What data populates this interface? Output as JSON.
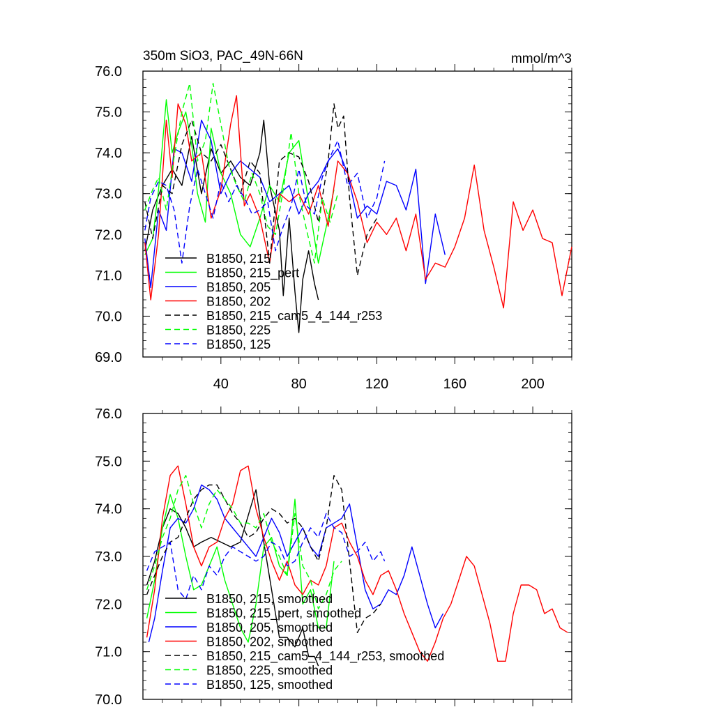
{
  "chart_data": [
    {
      "type": "line",
      "title": "350m SiO3, PAC_49N-66N",
      "units": "mmol/m^3",
      "xlabel": "",
      "ylabel": "",
      "xlim": [
        0,
        220
      ],
      "ylim": [
        69.0,
        76.0
      ],
      "xticks": [
        40,
        80,
        120,
        160,
        200
      ],
      "xtick_labels": [
        "40",
        "80",
        "120",
        "160",
        "200"
      ],
      "yticks": [
        69.0,
        70.0,
        71.0,
        72.0,
        73.0,
        74.0,
        75.0,
        76.0
      ],
      "ytick_labels": [
        "69.0",
        "70.0",
        "71.0",
        "72.0",
        "73.0",
        "74.0",
        "75.0",
        "76.0"
      ],
      "legend_position": "lower-left",
      "series": [
        {
          "name": "B1850, 215",
          "color": "#000000",
          "dash": "solid",
          "x": [
            1,
            5,
            10,
            15,
            20,
            25,
            30,
            35,
            40,
            45,
            50,
            55,
            60,
            62,
            65,
            70,
            72,
            75,
            78,
            80,
            82,
            85,
            88,
            90
          ],
          "y": [
            71.6,
            72.6,
            73.2,
            73.6,
            73.2,
            74.4,
            73.0,
            74.1,
            73.5,
            73.8,
            73.4,
            73.2,
            74.0,
            74.8,
            73.2,
            72.1,
            70.5,
            72.4,
            70.6,
            69.6,
            70.9,
            71.6,
            70.8,
            70.4
          ]
        },
        {
          "name": "B1850, 215_pert",
          "color": "#00ff00",
          "dash": "solid",
          "x": [
            1,
            5,
            8,
            12,
            15,
            18,
            22,
            25,
            28,
            32,
            35,
            40,
            45,
            50,
            55,
            60,
            65,
            70,
            75,
            80,
            85,
            90,
            95,
            98
          ],
          "y": [
            71.5,
            71.9,
            73.1,
            75.3,
            74.0,
            74.5,
            75.0,
            74.2,
            73.0,
            72.3,
            74.6,
            73.5,
            73.0,
            72.0,
            71.7,
            72.4,
            73.2,
            72.8,
            74.0,
            74.3,
            72.8,
            71.3,
            72.4,
            73.1
          ]
        },
        {
          "name": "B1850, 205",
          "color": "#0000ff",
          "dash": "solid",
          "x": [
            1,
            4,
            8,
            12,
            16,
            20,
            25,
            30,
            35,
            40,
            45,
            50,
            55,
            60,
            65,
            70,
            75,
            80,
            85,
            90,
            95,
            100,
            105,
            110,
            115,
            120,
            125,
            130,
            135,
            140,
            145,
            150,
            155
          ],
          "y": [
            71.9,
            70.7,
            72.6,
            72.1,
            74.1,
            74.0,
            73.3,
            74.8,
            74.3,
            73.0,
            73.5,
            73.8,
            73.6,
            73.4,
            72.8,
            73.0,
            73.2,
            72.5,
            73.0,
            73.3,
            73.8,
            74.1,
            73.5,
            72.4,
            72.7,
            72.5,
            73.3,
            73.2,
            72.6,
            73.6,
            70.8,
            72.5,
            71.5
          ]
        },
        {
          "name": "B1850, 202",
          "color": "#ff0000",
          "dash": "solid",
          "x": [
            1,
            4,
            8,
            12,
            15,
            18,
            22,
            25,
            30,
            35,
            40,
            45,
            48,
            52,
            55,
            60,
            65,
            70,
            75,
            80,
            85,
            90,
            95,
            100,
            105,
            110,
            115,
            120,
            125,
            130,
            135,
            140,
            145,
            150,
            155,
            160,
            165,
            170,
            175,
            180,
            185,
            190,
            195,
            200,
            205,
            210,
            215,
            220
          ],
          "y": [
            71.8,
            70.4,
            72.0,
            74.8,
            73.4,
            75.2,
            74.7,
            73.8,
            74.0,
            72.4,
            73.1,
            74.7,
            75.4,
            72.7,
            73.0,
            72.4,
            71.3,
            73.0,
            72.8,
            73.0,
            72.5,
            73.2,
            72.2,
            73.8,
            73.5,
            72.8,
            71.8,
            72.3,
            72.0,
            72.4,
            71.6,
            72.5,
            70.9,
            71.3,
            71.2,
            71.7,
            72.4,
            73.7,
            72.1,
            71.2,
            70.2,
            72.8,
            72.1,
            72.6,
            71.9,
            71.8,
            70.5,
            71.7
          ]
        },
        {
          "name": "B1850, 215_cam5_4_144_r253",
          "color": "#000000",
          "dash": "dashed",
          "x": [
            1,
            5,
            10,
            15,
            20,
            25,
            30,
            35,
            40,
            45,
            50,
            55,
            60,
            65,
            70,
            75,
            80,
            85,
            90,
            95,
            98,
            100,
            103,
            106,
            110,
            115,
            120
          ],
          "y": [
            72.8,
            71.9,
            73.2,
            73.0,
            74.2,
            74.8,
            74.0,
            73.8,
            74.2,
            73.6,
            73.0,
            73.8,
            73.5,
            71.3,
            73.8,
            74.0,
            73.9,
            73.3,
            72.3,
            73.8,
            75.2,
            74.6,
            74.9,
            72.9,
            71.0,
            72.0,
            72.4
          ]
        },
        {
          "name": "B1850, 225",
          "color": "#00ff00",
          "dash": "dashed",
          "x": [
            1,
            5,
            8,
            12,
            16,
            20,
            24,
            28,
            32,
            36,
            40,
            44,
            48,
            52,
            56,
            60,
            64,
            68,
            72,
            76,
            80,
            84,
            88,
            92,
            96,
            100
          ],
          "y": [
            72.6,
            73.1,
            73.4,
            72.6,
            73.9,
            75.0,
            75.7,
            73.8,
            74.3,
            75.7,
            74.7,
            73.7,
            73.2,
            72.8,
            73.5,
            73.0,
            72.2,
            72.0,
            73.1,
            74.5,
            73.0,
            72.1,
            71.3,
            72.9,
            72.3,
            73.0
          ]
        },
        {
          "name": "B1850, 125",
          "color": "#0000ff",
          "dash": "dashed",
          "x": [
            1,
            4,
            8,
            12,
            16,
            20,
            24,
            28,
            32,
            36,
            40,
            44,
            48,
            52,
            56,
            60,
            64,
            68,
            72,
            76,
            80,
            84,
            88,
            92,
            96,
            100,
            105,
            110,
            115,
            120,
            124
          ],
          "y": [
            72.1,
            72.9,
            73.3,
            73.2,
            72.6,
            71.3,
            72.7,
            73.6,
            73.0,
            72.4,
            73.3,
            72.8,
            73.2,
            72.9,
            72.5,
            72.6,
            72.8,
            71.6,
            72.2,
            72.7,
            73.6,
            72.7,
            72.5,
            73.4,
            73.9,
            74.3,
            73.2,
            73.5,
            72.4,
            72.9,
            73.8
          ]
        }
      ]
    },
    {
      "type": "line",
      "title": "",
      "xlabel": "",
      "ylabel": "",
      "xlim": [
        0,
        220
      ],
      "ylim": [
        70.0,
        76.0
      ],
      "xticks": [
        40,
        80,
        120,
        160,
        200
      ],
      "yticks": [
        70.0,
        71.0,
        72.0,
        73.0,
        74.0,
        75.0,
        76.0
      ],
      "ytick_labels": [
        "70.0",
        "71.0",
        "72.0",
        "73.0",
        "74.0",
        "75.0",
        "76.0"
      ],
      "legend_position": "lower-left",
      "series": [
        {
          "name": "B1850, 215, smoothed",
          "color": "#000000",
          "dash": "solid",
          "x": [
            2,
            6,
            10,
            14,
            18,
            22,
            26,
            30,
            35,
            40,
            45,
            50,
            55,
            58,
            62,
            66,
            70,
            74,
            78,
            82,
            85,
            88,
            90
          ],
          "y": [
            72.4,
            72.9,
            73.6,
            74.0,
            73.9,
            73.6,
            73.2,
            73.3,
            73.4,
            73.3,
            73.2,
            73.3,
            74.0,
            74.4,
            73.3,
            72.3,
            71.3,
            71.3,
            71.1,
            71.5,
            70.9,
            70.9,
            70.7
          ]
        },
        {
          "name": "B1850, 215_pert, smoothed",
          "color": "#00ff00",
          "dash": "solid",
          "x": [
            2,
            6,
            10,
            14,
            18,
            22,
            26,
            30,
            34,
            38,
            42,
            46,
            50,
            54,
            58,
            62,
            66,
            70,
            74,
            78,
            82,
            86,
            90,
            94,
            98
          ],
          "y": [
            71.7,
            72.5,
            73.6,
            74.3,
            73.8,
            73.0,
            72.3,
            72.4,
            72.8,
            73.2,
            72.5,
            72.0,
            71.5,
            71.2,
            72.0,
            73.2,
            73.4,
            72.8,
            72.6,
            74.2,
            72.0,
            72.3,
            71.5,
            71.5,
            72.9
          ]
        },
        {
          "name": "B1850, 205, smoothed",
          "color": "#0000ff",
          "dash": "solid",
          "x": [
            3,
            6,
            10,
            14,
            18,
            22,
            26,
            30,
            34,
            38,
            42,
            46,
            50,
            54,
            58,
            62,
            66,
            70,
            74,
            78,
            82,
            86,
            90,
            94,
            98,
            102,
            106,
            110,
            114,
            118,
            122,
            126,
            130,
            134,
            138,
            142,
            146,
            150,
            154
          ],
          "y": [
            71.2,
            71.7,
            72.7,
            73.6,
            73.8,
            73.7,
            74.0,
            74.5,
            74.4,
            74.2,
            73.8,
            73.6,
            73.4,
            73.2,
            73.0,
            73.4,
            73.8,
            73.5,
            73.0,
            73.3,
            73.6,
            73.2,
            73.0,
            73.6,
            73.7,
            73.8,
            74.1,
            73.2,
            72.3,
            71.9,
            72.0,
            72.3,
            72.2,
            72.6,
            73.2,
            72.6,
            72.0,
            71.5,
            71.8
          ]
        },
        {
          "name": "B1850, 202, smoothed",
          "color": "#ff0000",
          "dash": "solid",
          "x": [
            2,
            6,
            10,
            14,
            18,
            22,
            26,
            30,
            34,
            38,
            42,
            46,
            50,
            54,
            58,
            62,
            66,
            70,
            74,
            78,
            82,
            86,
            90,
            94,
            98,
            102,
            106,
            110,
            114,
            118,
            122,
            126,
            130,
            134,
            138,
            142,
            146,
            150,
            154,
            158,
            162,
            166,
            170,
            174,
            178,
            182,
            186,
            190,
            194,
            198,
            202,
            206,
            210,
            214,
            218
          ],
          "y": [
            71.3,
            72.3,
            73.8,
            74.7,
            74.9,
            74.1,
            73.2,
            72.8,
            73.2,
            73.3,
            73.8,
            74.1,
            74.8,
            74.9,
            74.0,
            73.4,
            72.9,
            72.5,
            72.9,
            72.4,
            72.2,
            72.5,
            72.4,
            72.8,
            73.6,
            73.7,
            73.3,
            73.0,
            72.5,
            72.2,
            72.6,
            72.7,
            72.3,
            71.8,
            71.4,
            71.0,
            70.8,
            71.2,
            71.7,
            72.0,
            72.5,
            73.0,
            72.8,
            72.2,
            71.6,
            70.8,
            70.8,
            71.8,
            72.4,
            72.4,
            72.3,
            71.8,
            71.9,
            71.5,
            71.4
          ]
        },
        {
          "name": "B1850, 215_cam5_4_144_r253, smoothed",
          "color": "#000000",
          "dash": "dashed",
          "x": [
            2,
            6,
            10,
            14,
            18,
            22,
            26,
            30,
            34,
            38,
            42,
            46,
            50,
            54,
            58,
            62,
            66,
            70,
            74,
            78,
            82,
            86,
            90,
            94,
            98,
            102,
            106,
            110,
            114,
            118,
            122
          ],
          "y": [
            72.2,
            72.6,
            73.0,
            73.3,
            73.4,
            73.8,
            74.2,
            74.4,
            74.5,
            74.5,
            74.2,
            73.9,
            73.7,
            73.4,
            73.5,
            73.8,
            74.0,
            73.9,
            73.7,
            73.8,
            73.6,
            73.2,
            72.9,
            73.6,
            74.7,
            74.4,
            72.9,
            71.4,
            71.7,
            71.8,
            72.0
          ]
        },
        {
          "name": "B1850, 225, smoothed",
          "color": "#00ff00",
          "dash": "dashed",
          "x": [
            2,
            6,
            10,
            14,
            18,
            22,
            26,
            30,
            34,
            38,
            42,
            46,
            50,
            54,
            58,
            62,
            66,
            70,
            74,
            78,
            82,
            86,
            90,
            94,
            98,
            102
          ],
          "y": [
            72.3,
            72.8,
            73.4,
            73.8,
            74.4,
            74.7,
            74.1,
            73.6,
            74.1,
            74.4,
            74.2,
            74.0,
            73.7,
            73.7,
            73.6,
            73.9,
            73.3,
            73.0,
            72.6,
            73.9,
            72.8,
            72.5,
            71.9,
            72.2,
            72.7,
            72.9
          ]
        },
        {
          "name": "B1850, 125, smoothed",
          "color": "#0000ff",
          "dash": "dashed",
          "x": [
            2,
            6,
            10,
            14,
            18,
            22,
            26,
            30,
            34,
            38,
            42,
            46,
            50,
            54,
            58,
            62,
            66,
            70,
            74,
            78,
            82,
            86,
            90,
            94,
            98,
            102,
            106,
            110,
            114,
            118,
            122,
            124
          ],
          "y": [
            72.7,
            73.1,
            73.2,
            73.3,
            72.3,
            72.1,
            72.6,
            72.3,
            72.8,
            72.6,
            73.0,
            73.2,
            73.1,
            73.0,
            72.9,
            73.0,
            73.3,
            73.2,
            72.8,
            72.9,
            73.3,
            73.6,
            73.4,
            73.9,
            73.6,
            73.5,
            73.0,
            73.1,
            73.3,
            72.9,
            73.1,
            72.9
          ]
        }
      ]
    }
  ]
}
